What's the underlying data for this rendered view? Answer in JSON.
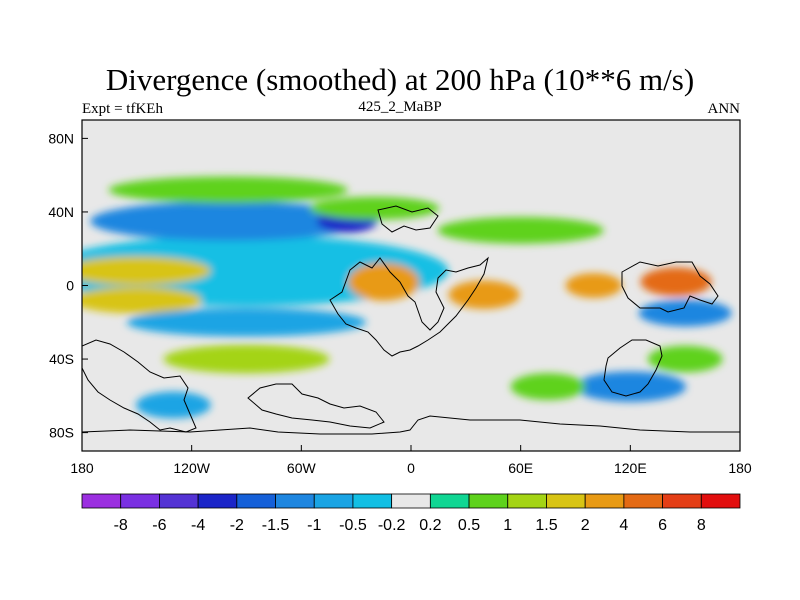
{
  "chart_data": {
    "type": "heatmap",
    "title": "Divergence (smoothed) at 200 hPa (10**6 m/s)",
    "subtitle_left": "Expt = tfKEh",
    "subtitle_center": "425_2_MaBP",
    "subtitle_right": "ANN",
    "x_ticks": [
      "180",
      "120W",
      "60W",
      "0",
      "60E",
      "120E",
      "180"
    ],
    "y_ticks": [
      "80N",
      "40N",
      "0",
      "40S",
      "80S"
    ],
    "x_range": [
      -180,
      180
    ],
    "y_range": [
      -90,
      90
    ],
    "colorbar_labels": [
      "-8",
      "-6",
      "-4",
      "-2",
      "-1.5",
      "-1",
      "-0.5",
      "-0.2",
      "0.2",
      "0.5",
      "1",
      "1.5",
      "2",
      "4",
      "6",
      "8"
    ],
    "colorbar_colors": [
      "#9b2fe0",
      "#7a30e2",
      "#5433d4",
      "#1b25c8",
      "#1560d8",
      "#1e86e0",
      "#1aa4e4",
      "#12bfe4",
      "#e8e8e8",
      "#10d693",
      "#5ed21c",
      "#a4d414",
      "#d8c414",
      "#e89a14",
      "#e46a14",
      "#e43e16",
      "#e20e0e"
    ],
    "field_features": [
      {
        "lon": -90,
        "lat": 8,
        "value": -0.4,
        "w": 210,
        "h": 32
      },
      {
        "lon": -150,
        "lat": 8,
        "value": 2,
        "w": 70,
        "h": 9
      },
      {
        "lon": -150,
        "lat": -8,
        "value": 2,
        "w": 60,
        "h": 8
      },
      {
        "lon": -100,
        "lat": 35,
        "value": -1.2,
        "w": 140,
        "h": 15
      },
      {
        "lon": -35,
        "lat": 35,
        "value": -3,
        "w": 22,
        "h": 6
      },
      {
        "lon": -20,
        "lat": 42,
        "value": 1,
        "w": 60,
        "h": 6
      },
      {
        "lon": 60,
        "lat": 30,
        "value": 0.8,
        "w": 80,
        "h": 8
      },
      {
        "lon": -100,
        "lat": 52,
        "value": 0.6,
        "w": 120,
        "h": 8
      },
      {
        "lon": -15,
        "lat": 2,
        "value": 4,
        "w": 28,
        "h": 14
      },
      {
        "lon": 40,
        "lat": -5,
        "value": 4,
        "w": 28,
        "h": 9
      },
      {
        "lon": 100,
        "lat": 0,
        "value": 4,
        "w": 20,
        "h": 7
      },
      {
        "lon": 145,
        "lat": 2,
        "value": 6,
        "w": 28,
        "h": 9
      },
      {
        "lon": 150,
        "lat": -15,
        "value": -1.2,
        "w": 40,
        "h": 8
      },
      {
        "lon": -90,
        "lat": -20,
        "value": -0.8,
        "w": 120,
        "h": 9
      },
      {
        "lon": -90,
        "lat": -40,
        "value": 1.2,
        "w": 80,
        "h": 9
      },
      {
        "lon": -130,
        "lat": -65,
        "value": -0.8,
        "w": 30,
        "h": 8
      },
      {
        "lon": 120,
        "lat": -55,
        "value": -1,
        "w": 50,
        "h": 10
      },
      {
        "lon": 150,
        "lat": -40,
        "value": 1,
        "w": 30,
        "h": 8
      },
      {
        "lon": 75,
        "lat": -55,
        "value": 0.6,
        "w": 30,
        "h": 8
      }
    ]
  }
}
